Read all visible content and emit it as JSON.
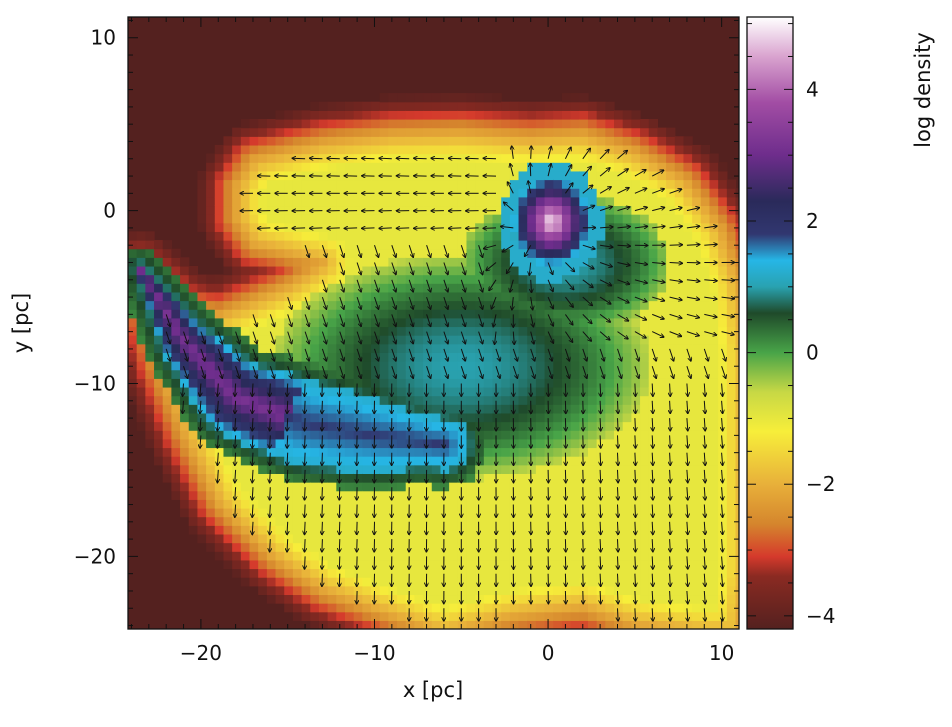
{
  "chart_data": {
    "type": "heatmap",
    "title": "",
    "xlabel": "x [pc]",
    "ylabel": "y [pc]",
    "colorbar_label": "log density",
    "xlim": [
      -24.2,
      11.0
    ],
    "ylim": [
      -24.2,
      11.2
    ],
    "x_ticks": [
      -20,
      -10,
      0,
      10
    ],
    "y_ticks": [
      -20,
      -10,
      0,
      10
    ],
    "colorbar_range": [
      -4.2,
      5.1
    ],
    "colorbar_ticks": [
      -4,
      -2,
      0,
      2,
      4
    ],
    "grid": false,
    "overlay": "velocity vector arrows",
    "colormap": [
      {
        "value": -4.2,
        "color": "#54211f"
      },
      {
        "value": -3.4,
        "color": "#8a2a22"
      },
      {
        "value": -3.1,
        "color": "#d53a2c"
      },
      {
        "value": -2.6,
        "color": "#d5862d"
      },
      {
        "value": -2.0,
        "color": "#e8b03a"
      },
      {
        "value": -1.2,
        "color": "#f7ee3a"
      },
      {
        "value": -0.6,
        "color": "#c7d845"
      },
      {
        "value": 0.0,
        "color": "#48a448"
      },
      {
        "value": 0.6,
        "color": "#1f4a2a"
      },
      {
        "value": 1.0,
        "color": "#29a2b0"
      },
      {
        "value": 1.4,
        "color": "#26b6e6"
      },
      {
        "value": 1.8,
        "color": "#313770"
      },
      {
        "value": 2.3,
        "color": "#2a2a5a"
      },
      {
        "value": 3.0,
        "color": "#6e2d8c"
      },
      {
        "value": 3.8,
        "color": "#a24da4"
      },
      {
        "value": 4.5,
        "color": "#d9a3cf"
      },
      {
        "value": 5.1,
        "color": "#ffffff"
      }
    ],
    "features": {
      "core": {
        "center": [
          0.2,
          -0.3
        ],
        "radius": 2.0,
        "peak_log_density": 5.0
      },
      "tail": {
        "from": [
          -23.5,
          -3.3
        ],
        "to": [
          -8,
          -15
        ],
        "log_density": 2.5
      },
      "envelope_log_density": -1.2
    }
  }
}
